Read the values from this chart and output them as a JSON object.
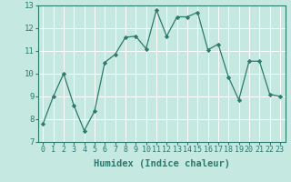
{
  "x": [
    0,
    1,
    2,
    3,
    4,
    5,
    6,
    7,
    8,
    9,
    10,
    11,
    12,
    13,
    14,
    15,
    16,
    17,
    18,
    19,
    20,
    21,
    22,
    23
  ],
  "y": [
    7.8,
    9.0,
    10.0,
    8.6,
    7.5,
    8.35,
    10.5,
    10.85,
    11.6,
    11.65,
    11.1,
    12.8,
    11.65,
    12.5,
    12.5,
    12.7,
    11.05,
    11.3,
    9.85,
    8.85,
    10.55,
    10.55,
    9.1,
    9.0
  ],
  "line_color": "#2d7a6e",
  "marker": "D",
  "marker_size": 2.2,
  "bg_color": "#c5e8e0",
  "grid_color": "#ffffff",
  "xlabel": "Humidex (Indice chaleur)",
  "ylim": [
    7,
    13
  ],
  "xlim": [
    -0.5,
    23.5
  ],
  "yticks": [
    7,
    8,
    9,
    10,
    11,
    12,
    13
  ],
  "xticks": [
    0,
    1,
    2,
    3,
    4,
    5,
    6,
    7,
    8,
    9,
    10,
    11,
    12,
    13,
    14,
    15,
    16,
    17,
    18,
    19,
    20,
    21,
    22,
    23
  ],
  "tick_color": "#2d7a6e",
  "label_color": "#2d7a6e",
  "xlabel_fontsize": 7.5,
  "tick_fontsize": 6.0,
  "ytick_fontsize": 6.5
}
